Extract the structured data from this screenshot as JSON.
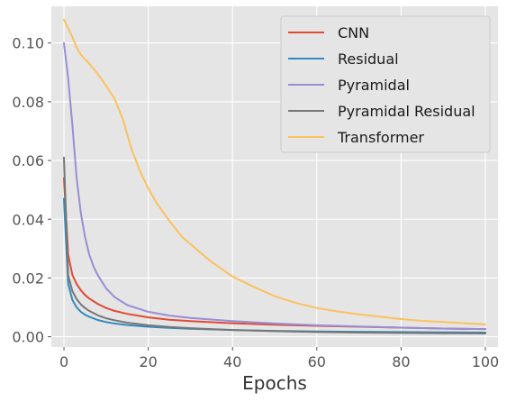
{
  "chart_data": {
    "type": "line",
    "title": "",
    "xlabel": "Epochs",
    "ylabel": "",
    "xlim": [
      -3,
      103
    ],
    "ylim": [
      -0.0035,
      0.1125
    ],
    "xticks": [
      0,
      20,
      40,
      60,
      80,
      100
    ],
    "xtick_labels": [
      "0",
      "20",
      "40",
      "60",
      "80",
      "100"
    ],
    "yticks": [
      0.0,
      0.02,
      0.04,
      0.06,
      0.08,
      0.1
    ],
    "ytick_labels": [
      "0.00",
      "0.02",
      "0.04",
      "0.06",
      "0.08",
      "0.10"
    ],
    "grid": true,
    "legend_position": "top-right",
    "series": [
      {
        "name": "CNN",
        "color": "#E24A33",
        "x": [
          0,
          1,
          2,
          3,
          4,
          5,
          6,
          8,
          10,
          12,
          15,
          20,
          25,
          30,
          40,
          50,
          60,
          70,
          80,
          90,
          100
        ],
        "y": [
          0.054,
          0.028,
          0.021,
          0.018,
          0.0158,
          0.0142,
          0.013,
          0.0112,
          0.0098,
          0.0088,
          0.0078,
          0.0066,
          0.0058,
          0.0053,
          0.0046,
          0.0041,
          0.0037,
          0.0034,
          0.0031,
          0.0028,
          0.0026
        ]
      },
      {
        "name": "Residual",
        "color": "#348ABD",
        "x": [
          0,
          1,
          2,
          3,
          4,
          5,
          6,
          8,
          10,
          12,
          15,
          20,
          25,
          30,
          40,
          50,
          60,
          70,
          80,
          90,
          100
        ],
        "y": [
          0.047,
          0.018,
          0.0125,
          0.01,
          0.0085,
          0.0075,
          0.0068,
          0.0057,
          0.005,
          0.0045,
          0.004,
          0.0034,
          0.003,
          0.0027,
          0.0023,
          0.002,
          0.0018,
          0.0017,
          0.0016,
          0.0015,
          0.0014
        ]
      },
      {
        "name": "Pyramidal",
        "color": "#988ED5",
        "x": [
          0,
          1,
          2,
          3,
          4,
          5,
          6,
          7,
          8,
          10,
          12,
          15,
          20,
          25,
          30,
          40,
          50,
          60,
          70,
          80,
          90,
          100
        ],
        "y": [
          0.1,
          0.088,
          0.072,
          0.054,
          0.042,
          0.034,
          0.028,
          0.024,
          0.021,
          0.0165,
          0.0135,
          0.0108,
          0.0085,
          0.0072,
          0.0064,
          0.0053,
          0.0045,
          0.0039,
          0.0035,
          0.0031,
          0.0028,
          0.0026
        ]
      },
      {
        "name": "Pyramidal Residual",
        "color": "#777777",
        "x": [
          0,
          1,
          2,
          3,
          4,
          5,
          6,
          8,
          10,
          12,
          15,
          20,
          25,
          30,
          40,
          50,
          60,
          70,
          80,
          90,
          100
        ],
        "y": [
          0.061,
          0.021,
          0.0155,
          0.0128,
          0.011,
          0.0098,
          0.0088,
          0.0073,
          0.0063,
          0.0056,
          0.0048,
          0.0039,
          0.0033,
          0.0029,
          0.0023,
          0.0019,
          0.0016,
          0.0014,
          0.0013,
          0.0012,
          0.0011
        ]
      },
      {
        "name": "Transformer",
        "color": "#FBC15E",
        "x": [
          0,
          1,
          2,
          3,
          4,
          6,
          8,
          10,
          12,
          14,
          16,
          18,
          20,
          22,
          25,
          28,
          30,
          35,
          40,
          45,
          50,
          55,
          60,
          65,
          70,
          75,
          80,
          85,
          90,
          95,
          100
        ],
        "y": [
          0.108,
          0.105,
          0.102,
          0.0985,
          0.096,
          0.093,
          0.0895,
          0.0855,
          0.081,
          0.074,
          0.064,
          0.0565,
          0.0505,
          0.0455,
          0.0395,
          0.034,
          0.0315,
          0.0255,
          0.0205,
          0.017,
          0.0138,
          0.0115,
          0.0098,
          0.0086,
          0.0076,
          0.0068,
          0.006,
          0.0054,
          0.005,
          0.0046,
          0.0042
        ]
      }
    ]
  }
}
